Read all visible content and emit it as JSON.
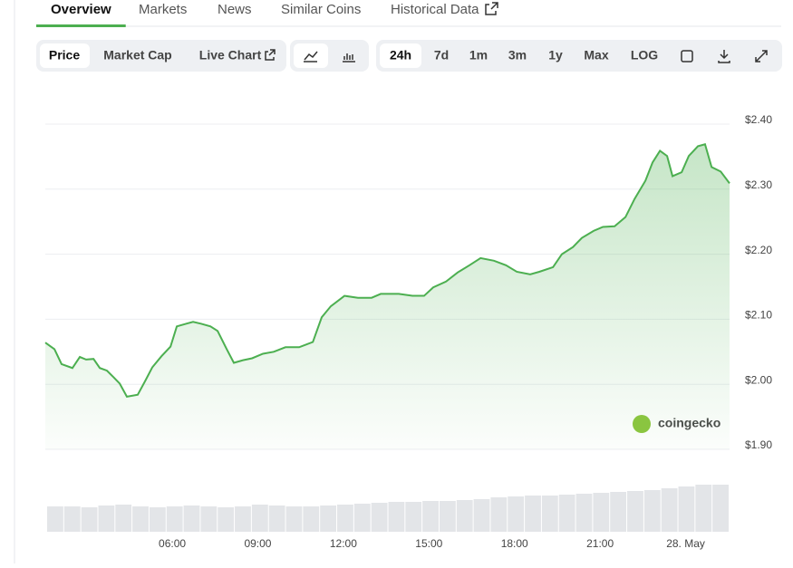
{
  "tabs": [
    "Overview",
    "Markets",
    "News",
    "Similar Coins",
    "Historical Data"
  ],
  "active_tab": 0,
  "view_buttons": [
    "Price",
    "Market Cap",
    "Live Chart"
  ],
  "range_buttons": [
    "24h",
    "7d",
    "1m",
    "3m",
    "1y",
    "Max",
    "LOG"
  ],
  "chart": {
    "type": "line",
    "watermark": "coingecko",
    "color": "#4caf50",
    "ylim": [
      1.9,
      2.4
    ],
    "yticks": [
      {
        "value": 1.9,
        "label": "$1.90"
      },
      {
        "value": 2.0,
        "label": "$2.00"
      },
      {
        "value": 2.1,
        "label": "$2.10"
      },
      {
        "value": 2.2,
        "label": "$2.20"
      },
      {
        "value": 2.3,
        "label": "$2.30"
      },
      {
        "value": 2.4,
        "label": "$2.40"
      }
    ],
    "xlim": [
      1.55,
      25.54
    ],
    "xticks": [
      {
        "value": 6,
        "label": "06:00"
      },
      {
        "value": 9,
        "label": "09:00"
      },
      {
        "value": 12,
        "label": "12:00"
      },
      {
        "value": 15,
        "label": "15:00"
      },
      {
        "value": 18,
        "label": "18:00"
      },
      {
        "value": 21,
        "label": "21:00"
      },
      {
        "value": 24,
        "label": "28. May"
      }
    ],
    "price": {
      "x": [
        1.55,
        1.87,
        2.12,
        2.5,
        2.76,
        2.98,
        3.24,
        3.46,
        3.71,
        3.94,
        4.16,
        4.41,
        4.79,
        5.05,
        5.3,
        5.62,
        5.94,
        6.16,
        6.48,
        6.73,
        7.02,
        7.34,
        7.59,
        7.91,
        8.16,
        8.48,
        8.8,
        9.18,
        9.56,
        9.97,
        10.45,
        10.93,
        11.24,
        11.56,
        12.04,
        12.51,
        12.99,
        13.31,
        13.94,
        14.42,
        14.83,
        15.15,
        15.6,
        16.01,
        16.42,
        16.81,
        17.28,
        17.7,
        18.08,
        18.55,
        18.87,
        19.35,
        19.66,
        20.05,
        20.36,
        20.78,
        21.1,
        21.51,
        21.89,
        22.21,
        22.59,
        22.84,
        23.1,
        23.35,
        23.54,
        23.86,
        24.11,
        24.43,
        24.68,
        24.91,
        25.23,
        25.54
      ],
      "values": [
        2.064,
        2.054,
        2.031,
        2.025,
        2.042,
        2.038,
        2.039,
        2.025,
        2.021,
        2.011,
        2.001,
        1.981,
        1.984,
        2.005,
        2.026,
        2.043,
        2.058,
        2.089,
        2.093,
        2.096,
        2.093,
        2.089,
        2.082,
        2.054,
        2.033,
        2.037,
        2.04,
        2.047,
        2.05,
        2.057,
        2.057,
        2.065,
        2.103,
        2.12,
        2.136,
        2.133,
        2.133,
        2.139,
        2.139,
        2.136,
        2.136,
        2.149,
        2.158,
        2.172,
        2.183,
        2.194,
        2.19,
        2.183,
        2.173,
        2.169,
        2.173,
        2.18,
        2.2,
        2.211,
        2.225,
        2.236,
        2.242,
        2.243,
        2.257,
        2.285,
        2.313,
        2.341,
        2.359,
        2.351,
        2.32,
        2.326,
        2.351,
        2.366,
        2.369,
        2.334,
        2.327,
        2.309
      ]
    },
    "volume": {
      "lim": [
        0,
        60
      ],
      "values": [
        28,
        28,
        27,
        29,
        30,
        28,
        27,
        28,
        29,
        28,
        27,
        28,
        30,
        29,
        28,
        28,
        29,
        30,
        31,
        32,
        33,
        33,
        34,
        34,
        35,
        36,
        38,
        39,
        40,
        40,
        41,
        42,
        43,
        44,
        45,
        46,
        48,
        50,
        52,
        52
      ]
    }
  }
}
